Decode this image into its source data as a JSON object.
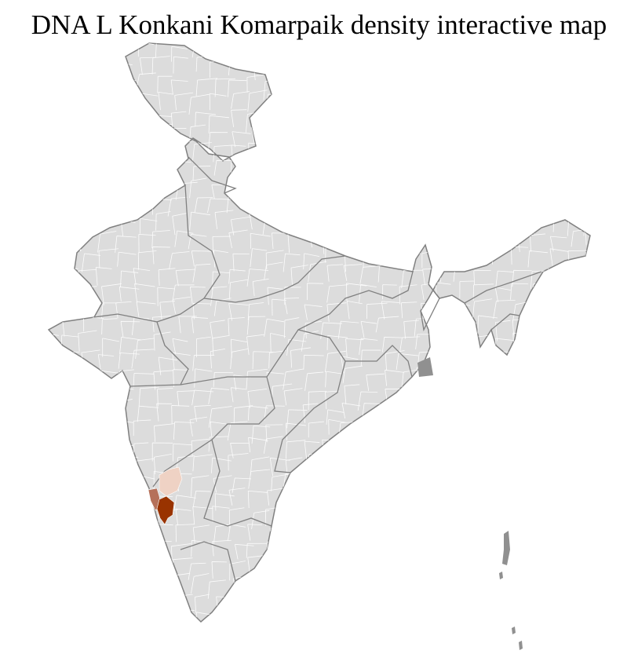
{
  "title": "DNA L Konkani Komarpaik density interactive map",
  "colors": {
    "land": "#dcdcdc",
    "district_border": "#ffffff",
    "state_border": "#808080",
    "density_low": "#efd2c4",
    "density_mid": "#b5715a",
    "density_high": "#993300"
  },
  "highlighted_districts": [
    {
      "level": "low"
    },
    {
      "level": "mid"
    },
    {
      "level": "high"
    }
  ]
}
